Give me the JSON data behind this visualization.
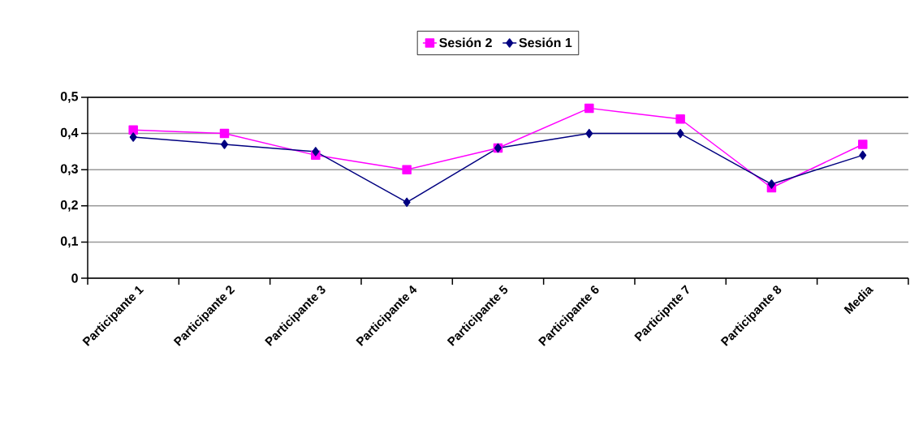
{
  "chart_data": {
    "type": "line",
    "categories": [
      "Participante 1",
      "Participante 2",
      "Participante 3",
      "Participante 4",
      "Participante 5",
      "Participante 6",
      "Participnte 7",
      "Participante 8",
      "Media"
    ],
    "series": [
      {
        "name": "Sesión 1",
        "color": "#000080",
        "marker": "diamond",
        "values": [
          0.39,
          0.37,
          0.35,
          0.21,
          0.36,
          0.4,
          0.4,
          0.26,
          0.34
        ]
      },
      {
        "name": "Sesión 2",
        "color": "#ff00ff",
        "marker": "square",
        "values": [
          0.41,
          0.4,
          0.34,
          0.3,
          0.36,
          0.47,
          0.44,
          0.25,
          0.37
        ]
      }
    ],
    "ylim": [
      0,
      0.5
    ],
    "yticks": [
      0,
      {
        "value": 0.1,
        "label": "0,1"
      },
      {
        "value": 0.2,
        "label": "0,2"
      },
      {
        "value": 0.3,
        "label": "0,3"
      },
      {
        "value": 0.4,
        "label": "0,4"
      },
      {
        "value": 0.5,
        "label": "0,5"
      }
    ],
    "grid": "y",
    "legend": "top",
    "line_style": "solid"
  }
}
